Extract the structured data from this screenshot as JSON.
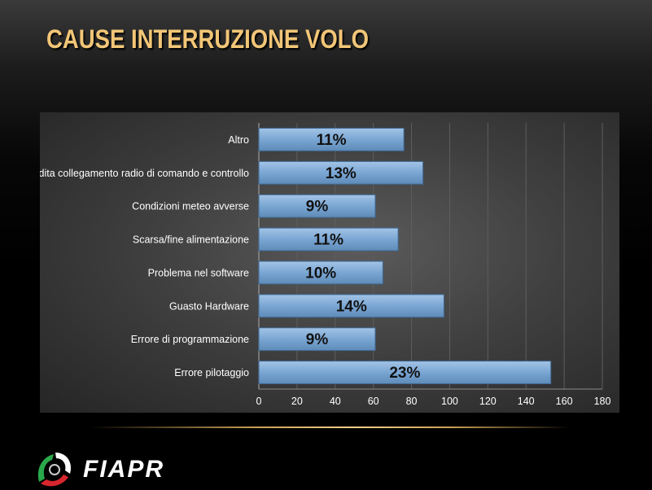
{
  "slide": {
    "title": "CAUSE INTERRUZIONE VOLO",
    "logo_text": "FIAPR"
  },
  "colors": {
    "title": "#f2c677",
    "bar_fill": "#7aa6d3",
    "bar_stroke": "#3f6a96",
    "bar_label": "#111111",
    "tick_label": "#ffffff"
  },
  "chart_data": {
    "type": "bar",
    "orientation": "horizontal",
    "categories": [
      "Altro",
      "Perdita collegamento radio di comando e controllo",
      "Condizioni meteo avverse",
      "Scarsa/fine alimentazione",
      "Problema nel software",
      "Guasto Hardware",
      "Errore di programmazione",
      "Errore pilotaggio"
    ],
    "values": [
      76,
      86,
      61,
      73,
      65,
      97,
      61,
      153
    ],
    "data_labels": [
      "11%",
      "13%",
      "9%",
      "11%",
      "10%",
      "14%",
      "9%",
      "23%"
    ],
    "x_ticks": [
      "0",
      "20",
      "40",
      "60",
      "80",
      "100",
      "120",
      "140",
      "160",
      "180"
    ],
    "xlim": [
      0,
      180
    ],
    "grid": true
  }
}
